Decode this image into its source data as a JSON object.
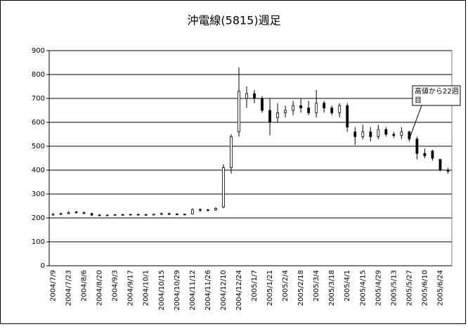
{
  "chart_data": {
    "type": "candlestick",
    "title": "沖電線(5815)週足",
    "categories": [
      "2004/7/9",
      null,
      "2004/7/23",
      null,
      "2004/8/6",
      null,
      "2004/8/20",
      null,
      "2004/9/3",
      null,
      "2004/9/17",
      null,
      "2004/10/1",
      null,
      "2004/10/15",
      null,
      "2004/10/29",
      null,
      "2004/11/12",
      null,
      "2004/11/26",
      null,
      "2004/12/10",
      null,
      "2004/12/24",
      null,
      "2005/1/7",
      null,
      "2005/1/21",
      null,
      "2005/2/4",
      null,
      "2005/2/18",
      null,
      "2005/3/4",
      null,
      "2005/3/18",
      null,
      "2005/4/1",
      null,
      "2005/4/15",
      null,
      "2005/4/29",
      null,
      "2005/5/13",
      null,
      "2005/5/27",
      null,
      "2005/6/10",
      null,
      "2005/6/24",
      null
    ],
    "open": [
      215,
      215,
      218,
      222,
      222,
      218,
      212,
      210,
      212,
      214,
      212,
      215,
      214,
      212,
      216,
      218,
      216,
      214,
      216,
      235,
      232,
      234,
      245,
      410,
      560,
      700,
      720,
      700,
      650,
      620,
      640,
      650,
      670,
      660,
      640,
      680,
      660,
      640,
      670,
      560,
      540,
      560,
      540,
      570,
      550,
      545,
      560,
      530,
      470,
      480,
      445,
      400
    ],
    "high": [
      220,
      222,
      228,
      228,
      226,
      222,
      216,
      215,
      216,
      218,
      218,
      218,
      218,
      218,
      222,
      222,
      220,
      218,
      240,
      240,
      238,
      245,
      425,
      550,
      830,
      750,
      735,
      710,
      700,
      680,
      670,
      690,
      700,
      690,
      735,
      690,
      670,
      680,
      680,
      580,
      590,
      580,
      590,
      580,
      560,
      580,
      565,
      540,
      490,
      485,
      445,
      410
    ],
    "low": [
      210,
      212,
      215,
      218,
      216,
      208,
      208,
      208,
      210,
      210,
      210,
      210,
      210,
      210,
      212,
      212,
      212,
      210,
      214,
      225,
      228,
      230,
      240,
      385,
      540,
      660,
      680,
      640,
      545,
      600,
      620,
      630,
      640,
      630,
      620,
      640,
      630,
      620,
      560,
      505,
      530,
      520,
      530,
      540,
      535,
      530,
      520,
      445,
      450,
      440,
      395,
      385
    ],
    "close": [
      215,
      218,
      222,
      225,
      220,
      212,
      210,
      212,
      214,
      212,
      215,
      214,
      212,
      216,
      218,
      216,
      214,
      216,
      235,
      232,
      234,
      240,
      410,
      540,
      730,
      720,
      700,
      650,
      600,
      640,
      650,
      670,
      660,
      640,
      680,
      660,
      640,
      670,
      580,
      540,
      560,
      540,
      570,
      550,
      545,
      560,
      530,
      470,
      460,
      450,
      400,
      395
    ],
    "color": "#000000",
    "ylim": [
      0,
      900
    ],
    "yticks": [
      0,
      100,
      200,
      300,
      400,
      500,
      600,
      700,
      800,
      900
    ],
    "grid": true,
    "annotation": {
      "text": "高値から22週目",
      "index": 46
    }
  }
}
